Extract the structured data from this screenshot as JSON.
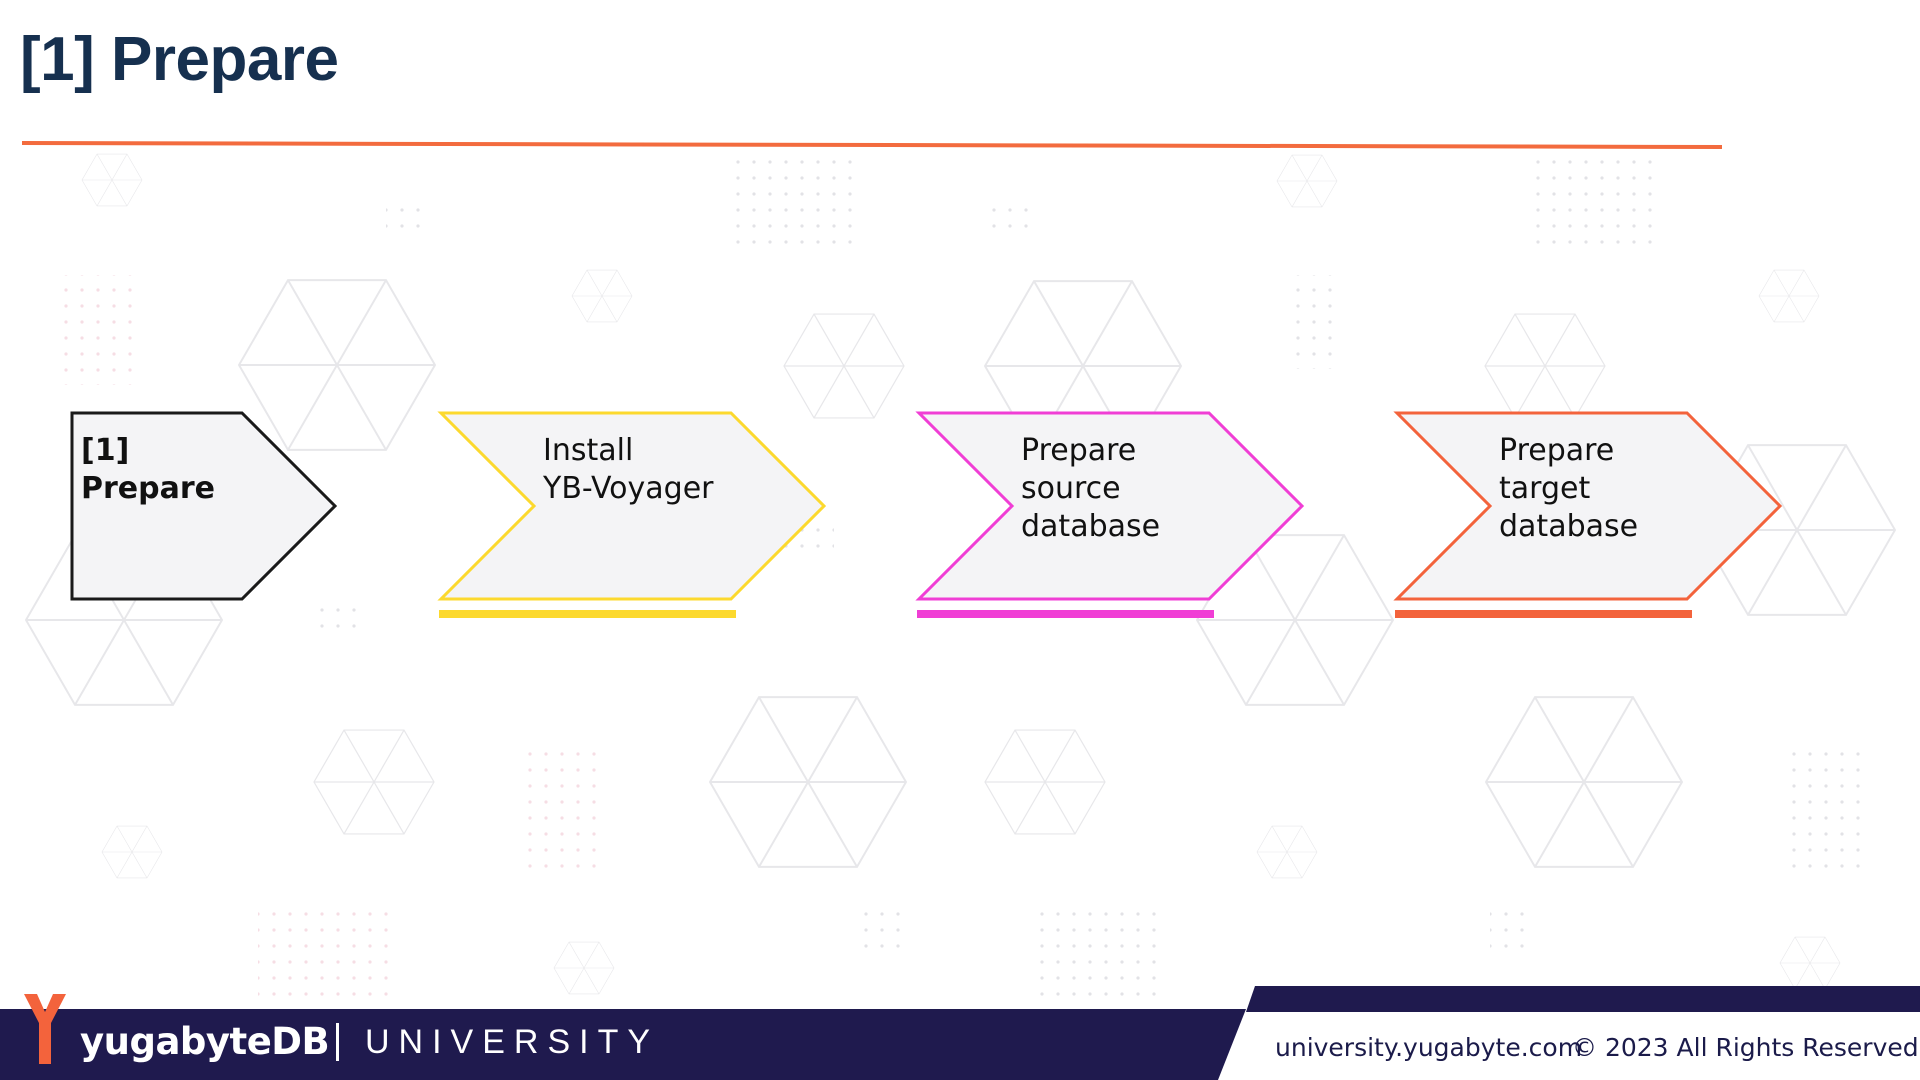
{
  "title": "[1] Prepare",
  "steps": [
    {
      "lines": [
        "[1]",
        "Prepare"
      ],
      "color": "#1a1a1a",
      "active": true
    },
    {
      "lines": [
        "Install",
        "YB-Voyager"
      ],
      "color": "#fcd92e",
      "active": false
    },
    {
      "lines": [
        "Prepare",
        "source",
        "database"
      ],
      "color": "#f03ed5",
      "active": false
    },
    {
      "lines": [
        "Prepare",
        "target",
        "database"
      ],
      "color": "#f3633c",
      "active": false
    }
  ],
  "footer": {
    "brand": "yugabyteDB",
    "division": "UNIVERSITY",
    "url": "university.yugabyte.com",
    "copyright": "© 2023  All Rights Reserved"
  },
  "colors": {
    "title": "#16304f",
    "divider": "#f36b3e",
    "footer_navy": "#1f1a4e",
    "logo_orange": "#f3633c",
    "step_fill": "#f4f4f6"
  },
  "icons": [
    "yugabyte-logo-icon",
    "hexagon-pattern-icon"
  ]
}
